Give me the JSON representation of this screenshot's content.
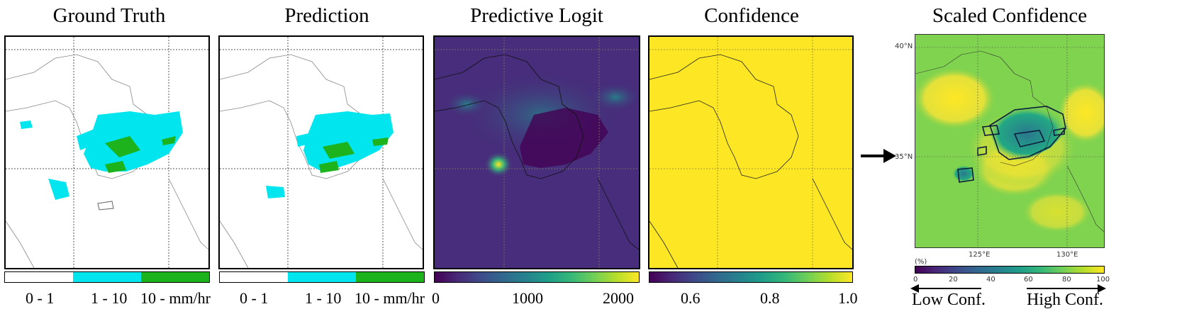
{
  "panels": [
    {
      "title": "Ground Truth"
    },
    {
      "title": "Prediction"
    },
    {
      "title": "Predictive Logit"
    },
    {
      "title": "Confidence"
    },
    {
      "title": "Scaled Confidence"
    }
  ],
  "chart_data": [
    {
      "type": "heatmap",
      "title": "Ground Truth",
      "colorbar": {
        "type": "categorical",
        "categories": [
          "0 - 1",
          "1 - 10",
          "10 - mm/hr"
        ],
        "colors": [
          "#ffffff",
          "#00e5ee",
          "#1db31d"
        ]
      }
    },
    {
      "type": "heatmap",
      "title": "Prediction",
      "colorbar": {
        "type": "categorical",
        "categories": [
          "0 - 1",
          "1 - 10",
          "10 - mm/hr"
        ],
        "colors": [
          "#ffffff",
          "#00e5ee",
          "#1db31d"
        ]
      }
    },
    {
      "type": "heatmap",
      "title": "Predictive Logit",
      "colorbar": {
        "type": "continuous",
        "colormap": "viridis",
        "range": [
          0,
          2200
        ],
        "ticks": [
          "0",
          "1000",
          "2000"
        ]
      }
    },
    {
      "type": "heatmap",
      "title": "Confidence",
      "colorbar": {
        "type": "continuous",
        "colormap": "viridis",
        "range": [
          0.5,
          1.0
        ],
        "ticks": [
          "0.6",
          "0.8",
          "1.0"
        ]
      }
    },
    {
      "type": "heatmap",
      "title": "Scaled Confidence",
      "lat_labels": [
        "40°N",
        "35°N"
      ],
      "lon_labels": [
        "125°E",
        "130°E"
      ],
      "colorbar": {
        "type": "continuous",
        "colormap": "viridis",
        "range": [
          0,
          100
        ],
        "unit": "(%)",
        "ticks": [
          "0",
          "20",
          "40",
          "60",
          "80",
          "100"
        ]
      },
      "annotations": {
        "low": "Low Conf.",
        "high": "High Conf."
      }
    }
  ],
  "colors": {
    "cyan": "#00e5ee",
    "green": "#1db31d",
    "viridis_dark": "#440154",
    "viridis_yellow": "#fde725"
  }
}
